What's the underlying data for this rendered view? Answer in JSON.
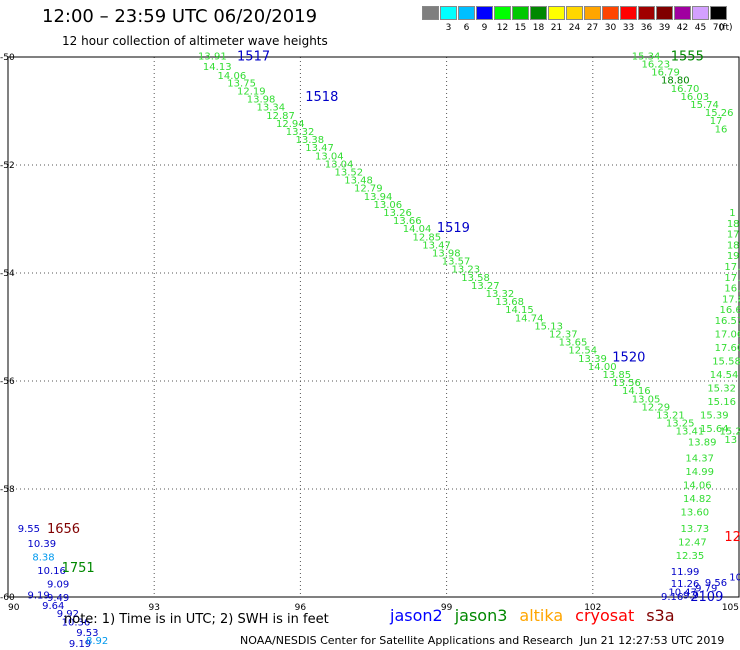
{
  "header": {
    "title": "12:00 – 23:59 UTC 06/20/2019",
    "subtitle": "12 hour collection of altimeter wave heights",
    "note": "note:  1) Time is in UTC;  2) SWH is in feet",
    "credit": "NOAA/NESDIS Center for Satellite Applications and Research",
    "timestamp": "Jun 21 12:27:53 UTC 2019"
  },
  "color_legend": {
    "unit": "(ft)",
    "bins": [
      {
        "label": "",
        "color": "#7f7f7f"
      },
      {
        "label": "3",
        "color": "#00ffff"
      },
      {
        "label": "6",
        "color": "#00bfff"
      },
      {
        "label": "9",
        "color": "#0000ff"
      },
      {
        "label": "12",
        "color": "#00ff00"
      },
      {
        "label": "15",
        "color": "#00c800"
      },
      {
        "label": "18",
        "color": "#008800"
      },
      {
        "label": "21",
        "color": "#ffff00"
      },
      {
        "label": "24",
        "color": "#ffd700"
      },
      {
        "label": "27",
        "color": "#ffa500"
      },
      {
        "label": "30",
        "color": "#ff4500"
      },
      {
        "label": "33",
        "color": "#ff0000"
      },
      {
        "label": "36",
        "color": "#a00000"
      },
      {
        "label": "39",
        "color": "#800000"
      },
      {
        "label": "42",
        "color": "#a000a0"
      },
      {
        "label": "45",
        "color": "#d3a0ff"
      },
      {
        "label": "70",
        "color": "#000000"
      }
    ]
  },
  "satellites": [
    {
      "name": "jason2",
      "color": "#0000ff"
    },
    {
      "name": "jason3",
      "color": "#008800"
    },
    {
      "name": "altika",
      "color": "#ffa500"
    },
    {
      "name": "cryosat",
      "color": "#ff0000"
    },
    {
      "name": "s3a",
      "color": "#800000"
    }
  ],
  "chart_data": {
    "type": "scatter",
    "xlim": [
      90,
      105
    ],
    "ylim": [
      -60,
      -50
    ],
    "x_ticks": [
      90,
      93,
      96,
      99,
      102,
      105
    ],
    "y_ticks": [
      -50,
      -52,
      -54,
      -56,
      -58,
      -60
    ],
    "x_tick_labels": [
      "90",
      "93",
      "96",
      "99",
      "102",
      "105"
    ],
    "y_tick_labels": [
      "-50",
      "-52",
      "-54",
      "-56",
      "-58",
      "-60"
    ],
    "grid": true,
    "time_labels": [
      {
        "text": "1517",
        "lon": 94.7,
        "lat": -49.97,
        "color": "#0000c8"
      },
      {
        "text": "1518",
        "lon": 96.1,
        "lat": -50.72,
        "color": "#0000c8"
      },
      {
        "text": "1519",
        "lon": 98.8,
        "lat": -53.15,
        "color": "#0000c8"
      },
      {
        "text": "1520",
        "lon": 102.4,
        "lat": -55.55,
        "color": "#0000c8"
      },
      {
        "text": "1555",
        "lon": 103.6,
        "lat": -49.97,
        "color": "#008800"
      },
      {
        "text": "1656",
        "lon": 90.8,
        "lat": -58.72,
        "color": "#800000"
      },
      {
        "text": "1751",
        "lon": 91.1,
        "lat": -59.44,
        "color": "#008800"
      },
      {
        "text": "2109",
        "lon": 104.0,
        "lat": -59.98,
        "color": "#0000c8"
      },
      {
        "text": "12",
        "lon": 104.7,
        "lat": -58.87,
        "color": "#ff0000"
      }
    ],
    "points": [
      {
        "lon": 93.9,
        "lat": -49.97,
        "value": "13.91",
        "color": "#33dd33"
      },
      {
        "lon": 94.0,
        "lat": -50.17,
        "value": "14.13",
        "color": "#33dd33"
      },
      {
        "lon": 94.3,
        "lat": -50.33,
        "value": "14.06",
        "color": "#33dd33"
      },
      {
        "lon": 94.5,
        "lat": -50.47,
        "value": "13.75",
        "color": "#33dd33"
      },
      {
        "lon": 94.7,
        "lat": -50.62,
        "value": "12.19",
        "color": "#33dd33"
      },
      {
        "lon": 94.9,
        "lat": -50.77,
        "value": "13.98",
        "color": "#33dd33"
      },
      {
        "lon": 95.1,
        "lat": -50.92,
        "value": "13.34",
        "color": "#33dd33"
      },
      {
        "lon": 95.3,
        "lat": -51.07,
        "value": "12.87",
        "color": "#33dd33"
      },
      {
        "lon": 95.5,
        "lat": -51.22,
        "value": "12.94",
        "color": "#33dd33"
      },
      {
        "lon": 95.7,
        "lat": -51.37,
        "value": "13.32",
        "color": "#33dd33"
      },
      {
        "lon": 95.9,
        "lat": -51.52,
        "value": "13.38",
        "color": "#33dd33"
      },
      {
        "lon": 96.1,
        "lat": -51.67,
        "value": "13.47",
        "color": "#33dd33"
      },
      {
        "lon": 96.3,
        "lat": -51.82,
        "value": "13.04",
        "color": "#33dd33"
      },
      {
        "lon": 96.5,
        "lat": -51.97,
        "value": "13.04",
        "color": "#33dd33"
      },
      {
        "lon": 96.7,
        "lat": -52.12,
        "value": "13.52",
        "color": "#33dd33"
      },
      {
        "lon": 96.9,
        "lat": -52.27,
        "value": "13.48",
        "color": "#33dd33"
      },
      {
        "lon": 97.1,
        "lat": -52.42,
        "value": "12.79",
        "color": "#33dd33"
      },
      {
        "lon": 97.3,
        "lat": -52.57,
        "value": "13.94",
        "color": "#33dd33"
      },
      {
        "lon": 97.5,
        "lat": -52.72,
        "value": "13.06",
        "color": "#33dd33"
      },
      {
        "lon": 97.7,
        "lat": -52.87,
        "value": "13.26",
        "color": "#33dd33"
      },
      {
        "lon": 97.9,
        "lat": -53.02,
        "value": "13.66",
        "color": "#33dd33"
      },
      {
        "lon": 98.1,
        "lat": -53.17,
        "value": "14.04",
        "color": "#33dd33"
      },
      {
        "lon": 98.3,
        "lat": -53.32,
        "value": "12.85",
        "color": "#33dd33"
      },
      {
        "lon": 98.5,
        "lat": -53.47,
        "value": "13.47",
        "color": "#33dd33"
      },
      {
        "lon": 98.7,
        "lat": -53.62,
        "value": "13.98",
        "color": "#33dd33"
      },
      {
        "lon": 98.9,
        "lat": -53.77,
        "value": "13.57",
        "color": "#33dd33"
      },
      {
        "lon": 99.1,
        "lat": -53.92,
        "value": "13.23",
        "color": "#33dd33"
      },
      {
        "lon": 99.3,
        "lat": -54.07,
        "value": "13.58",
        "color": "#33dd33"
      },
      {
        "lon": 99.5,
        "lat": -54.22,
        "value": "13.27",
        "color": "#33dd33"
      },
      {
        "lon": 99.8,
        "lat": -54.37,
        "value": "13.32",
        "color": "#33dd33"
      },
      {
        "lon": 100.0,
        "lat": -54.52,
        "value": "13.68",
        "color": "#33dd33"
      },
      {
        "lon": 100.2,
        "lat": -54.67,
        "value": "14.15",
        "color": "#33dd33"
      },
      {
        "lon": 100.4,
        "lat": -54.82,
        "value": "14.74",
        "color": "#33dd33"
      },
      {
        "lon": 100.8,
        "lat": -54.97,
        "value": "15.13",
        "color": "#33dd33"
      },
      {
        "lon": 101.1,
        "lat": -55.12,
        "value": "12.37",
        "color": "#33dd33"
      },
      {
        "lon": 101.3,
        "lat": -55.27,
        "value": "13.65",
        "color": "#33dd33"
      },
      {
        "lon": 101.5,
        "lat": -55.42,
        "value": "12.54",
        "color": "#33dd33"
      },
      {
        "lon": 101.7,
        "lat": -55.57,
        "value": "13.39",
        "color": "#33dd33"
      },
      {
        "lon": 101.9,
        "lat": -55.72,
        "value": "14.00",
        "color": "#33dd33"
      },
      {
        "lon": 102.2,
        "lat": -55.87,
        "value": "13.85",
        "color": "#33dd33"
      },
      {
        "lon": 102.4,
        "lat": -56.02,
        "value": "13.56",
        "color": "#33dd33"
      },
      {
        "lon": 102.6,
        "lat": -56.17,
        "value": "14.16",
        "color": "#33dd33"
      },
      {
        "lon": 102.8,
        "lat": -56.32,
        "value": "13.05",
        "color": "#33dd33"
      },
      {
        "lon": 103.0,
        "lat": -56.47,
        "value": "12.29",
        "color": "#33dd33"
      },
      {
        "lon": 103.3,
        "lat": -56.62,
        "value": "13.21",
        "color": "#33dd33"
      },
      {
        "lon": 103.5,
        "lat": -56.77,
        "value": "13.25",
        "color": "#33dd33"
      },
      {
        "lon": 103.7,
        "lat": -56.92,
        "value": "13.41",
        "color": "#33dd33"
      },
      {
        "lon": 102.8,
        "lat": -49.97,
        "value": "15.34",
        "color": "#33dd33"
      },
      {
        "lon": 103.0,
        "lat": -50.12,
        "value": "16.23",
        "color": "#33dd33"
      },
      {
        "lon": 103.2,
        "lat": -50.27,
        "value": "16.79",
        "color": "#33dd33"
      },
      {
        "lon": 103.4,
        "lat": -50.42,
        "value": "18.80",
        "color": "#008800"
      },
      {
        "lon": 103.6,
        "lat": -50.57,
        "value": "16.70",
        "color": "#33dd33"
      },
      {
        "lon": 103.8,
        "lat": -50.72,
        "value": "16.03",
        "color": "#33dd33"
      },
      {
        "lon": 104.0,
        "lat": -50.87,
        "value": "15.74",
        "color": "#33dd33"
      },
      {
        "lon": 104.3,
        "lat": -51.02,
        "value": "15.26",
        "color": "#33dd33"
      },
      {
        "lon": 104.4,
        "lat": -51.17,
        "value": "17",
        "color": "#33dd33"
      },
      {
        "lon": 104.5,
        "lat": -51.32,
        "value": "16",
        "color": "#33dd33"
      },
      {
        "lon": 104.8,
        "lat": -52.87,
        "value": "1",
        "color": "#33dd33"
      },
      {
        "lon": 104.75,
        "lat": -53.07,
        "value": "18",
        "color": "#33dd33"
      },
      {
        "lon": 104.75,
        "lat": -53.27,
        "value": "17",
        "color": "#33dd33"
      },
      {
        "lon": 104.75,
        "lat": -53.47,
        "value": "18",
        "color": "#33dd33"
      },
      {
        "lon": 104.75,
        "lat": -53.67,
        "value": "19",
        "color": "#33dd33"
      },
      {
        "lon": 104.7,
        "lat": -53.87,
        "value": "17.",
        "color": "#33dd33"
      },
      {
        "lon": 104.7,
        "lat": -54.07,
        "value": "17.4",
        "color": "#33dd33"
      },
      {
        "lon": 104.7,
        "lat": -54.27,
        "value": "16.2",
        "color": "#33dd33"
      },
      {
        "lon": 104.65,
        "lat": -54.47,
        "value": "17.8",
        "color": "#33dd33"
      },
      {
        "lon": 104.6,
        "lat": -54.67,
        "value": "16.6",
        "color": "#33dd33"
      },
      {
        "lon": 104.5,
        "lat": -54.87,
        "value": "16.57",
        "color": "#33dd33"
      },
      {
        "lon": 104.5,
        "lat": -55.12,
        "value": "17.06",
        "color": "#33dd33"
      },
      {
        "lon": 104.5,
        "lat": -55.37,
        "value": "17.60",
        "color": "#33dd33"
      },
      {
        "lon": 104.45,
        "lat": -55.62,
        "value": "15.58",
        "color": "#33dd33"
      },
      {
        "lon": 104.4,
        "lat": -55.87,
        "value": "14.54",
        "color": "#33dd33"
      },
      {
        "lon": 104.35,
        "lat": -56.12,
        "value": "15.32",
        "color": "#33dd33"
      },
      {
        "lon": 104.35,
        "lat": -56.37,
        "value": "15.16",
        "color": "#33dd33"
      },
      {
        "lon": 104.2,
        "lat": -56.62,
        "value": "15.39",
        "color": "#33dd33"
      },
      {
        "lon": 104.2,
        "lat": -56.87,
        "value": "15.64",
        "color": "#33dd33"
      },
      {
        "lon": 104.6,
        "lat": -56.92,
        "value": "15.29",
        "color": "#33dd33"
      },
      {
        "lon": 104.7,
        "lat": -57.07,
        "value": "13",
        "color": "#33dd33"
      },
      {
        "lon": 103.95,
        "lat": -57.12,
        "value": "13.89",
        "color": "#33dd33"
      },
      {
        "lon": 103.9,
        "lat": -57.42,
        "value": "14.37",
        "color": "#33dd33"
      },
      {
        "lon": 103.9,
        "lat": -57.67,
        "value": "14.99",
        "color": "#33dd33"
      },
      {
        "lon": 103.85,
        "lat": -57.92,
        "value": "14.06",
        "color": "#33dd33"
      },
      {
        "lon": 103.85,
        "lat": -58.17,
        "value": "14.82",
        "color": "#33dd33"
      },
      {
        "lon": 103.8,
        "lat": -58.42,
        "value": "13.60",
        "color": "#33dd33"
      },
      {
        "lon": 103.8,
        "lat": -58.72,
        "value": "13.73",
        "color": "#33dd33"
      },
      {
        "lon": 103.75,
        "lat": -58.97,
        "value": "12.47",
        "color": "#33dd33"
      },
      {
        "lon": 103.7,
        "lat": -59.22,
        "value": "12.35",
        "color": "#33dd33"
      },
      {
        "lon": 103.6,
        "lat": -59.52,
        "value": "11.99",
        "color": "#0000c8"
      },
      {
        "lon": 103.6,
        "lat": -59.74,
        "value": "11.26",
        "color": "#0000c8"
      },
      {
        "lon": 104.1,
        "lat": -59.82,
        "value": "9.79",
        "color": "#0000c8"
      },
      {
        "lon": 103.55,
        "lat": -59.9,
        "value": "10.47",
        "color": "#0000c8"
      },
      {
        "lon": 104.3,
        "lat": -59.72,
        "value": "9.56",
        "color": "#0000c8"
      },
      {
        "lon": 104.8,
        "lat": -59.62,
        "value": "10.",
        "color": "#0000c8"
      },
      {
        "lon": 103.4,
        "lat": -59.98,
        "value": "9.16",
        "color": "#0000c8"
      },
      {
        "lon": 103.85,
        "lat": -59.95,
        "value": "9.9",
        "color": "#0000c8"
      },
      {
        "lon": 90.2,
        "lat": -58.72,
        "value": "9.55",
        "color": "#0000c8"
      },
      {
        "lon": 90.4,
        "lat": -59.0,
        "value": "10.39",
        "color": "#0000c8"
      },
      {
        "lon": 90.5,
        "lat": -59.25,
        "value": "8.38",
        "color": "#0099ee"
      },
      {
        "lon": 90.6,
        "lat": -59.5,
        "value": "10.16",
        "color": "#0000c8"
      },
      {
        "lon": 90.8,
        "lat": -59.75,
        "value": "9.09",
        "color": "#0000c8"
      },
      {
        "lon": 90.4,
        "lat": -59.95,
        "value": "9.19",
        "color": "#0000c8"
      },
      {
        "lon": 90.7,
        "lat": -60.15,
        "value": "9.64",
        "color": "#0000c8"
      },
      {
        "lon": 90.8,
        "lat": -60.0,
        "value": "9.49",
        "color": "#0000c8"
      },
      {
        "lon": 91.0,
        "lat": -60.3,
        "value": "9.92",
        "color": "#0000c8"
      },
      {
        "lon": 91.1,
        "lat": -60.45,
        "value": "10.36",
        "color": "#0000c8"
      },
      {
        "lon": 91.4,
        "lat": -60.65,
        "value": "9.53",
        "color": "#0000c8"
      },
      {
        "lon": 91.25,
        "lat": -60.85,
        "value": "9.19",
        "color": "#0000c8"
      },
      {
        "lon": 91.6,
        "lat": -60.8,
        "value": "8.92",
        "color": "#0099ee"
      }
    ]
  }
}
